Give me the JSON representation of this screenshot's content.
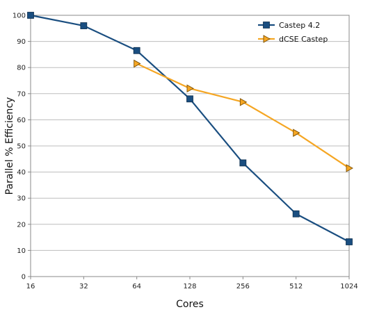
{
  "chart_data": {
    "type": "line",
    "title": "",
    "xlabel": "Cores",
    "ylabel": "Parallel % Efficiency",
    "categories": [
      "16",
      "32",
      "64",
      "128",
      "256",
      "512",
      "1024"
    ],
    "x_scale": "log2",
    "ylim": [
      0,
      100
    ],
    "yticks": [
      0,
      10,
      20,
      30,
      40,
      50,
      60,
      70,
      80,
      90,
      100
    ],
    "grid": "horizontal",
    "legend_position": "top-right",
    "series": [
      {
        "name": "Castep 4.2",
        "color": "#1a4e80",
        "marker": "square",
        "points": [
          {
            "x": "16",
            "y": 100
          },
          {
            "x": "32",
            "y": 96
          },
          {
            "x": "64",
            "y": 86.5
          },
          {
            "x": "128",
            "y": 68
          },
          {
            "x": "256",
            "y": 43.5
          },
          {
            "x": "512",
            "y": 24
          },
          {
            "x": "1024",
            "y": 13.3
          }
        ]
      },
      {
        "name": "dCSE Castep",
        "color": "#f5a623",
        "marker": "triangle-right",
        "points": [
          {
            "x": "64",
            "y": 81.5
          },
          {
            "x": "128",
            "y": 72
          },
          {
            "x": "256",
            "y": 66.8
          },
          {
            "x": "512",
            "y": 55
          },
          {
            "x": "1024",
            "y": 41.5
          }
        ]
      }
    ]
  }
}
